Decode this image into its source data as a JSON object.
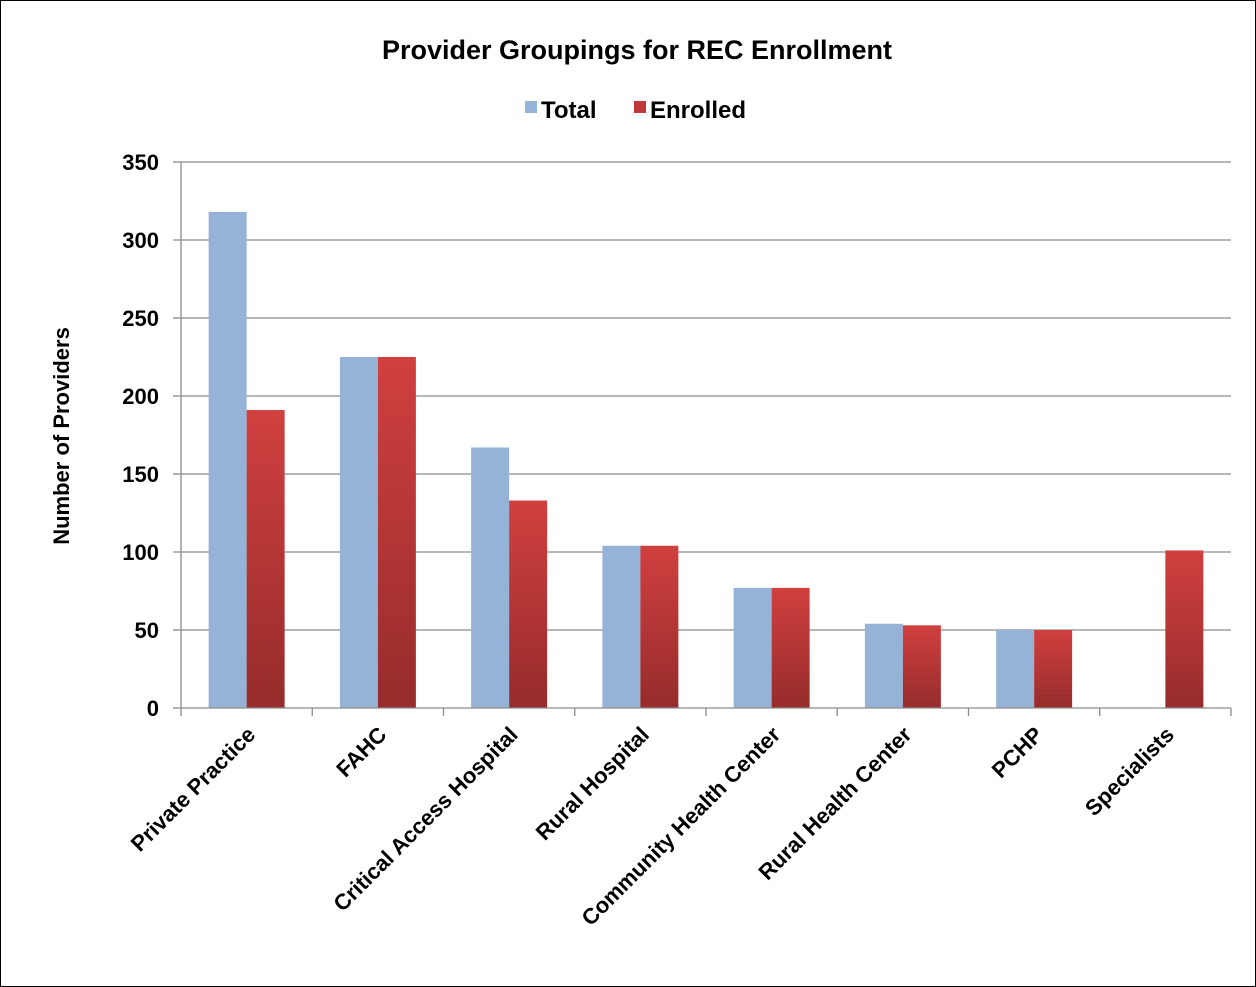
{
  "chart_data": {
    "type": "bar",
    "title": "Provider Groupings for REC Enrollment",
    "xlabel": "",
    "ylabel": "Number of Providers",
    "ylim": [
      0,
      350
    ],
    "yticks": [
      0,
      50,
      100,
      150,
      200,
      250,
      300,
      350
    ],
    "grid": true,
    "legend_position": "top",
    "categories": [
      "Private Practice",
      "FAHC",
      "Critical Access Hospital",
      "Rural Hospital",
      "Community Health Center",
      "Rural Health Center",
      "PCHP",
      "Specialists"
    ],
    "series": [
      {
        "name": "Total",
        "color": "#95b3d7",
        "values": [
          318,
          225,
          167,
          104,
          77,
          54,
          50,
          0
        ]
      },
      {
        "name": "Enrolled",
        "color": "#c0393a",
        "color_dark": "#962c2b",
        "values": [
          191,
          225,
          133,
          104,
          77,
          53,
          50,
          101
        ]
      }
    ]
  }
}
